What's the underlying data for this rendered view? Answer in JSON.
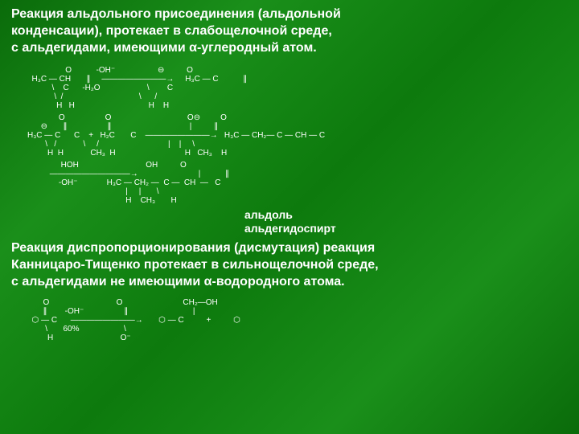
{
  "heading1_line1": "  Реакция альдольного присоединения (альдольной",
  "heading1_line2": " конденсации),  протекает в слабощелочной среде,",
  "heading1_line3": " с альдегидами, имеющими α-углеродный атом.",
  "scheme1": "                 O           -OH⁻                   ⊖          O\n  H₃C — CH       ∥     ————————→     H₃C — C           ∥\n           \\    C      -H₂O                     \\        C\n            \\  /                                  \\      /\n             H   H                                 H    H",
  "scheme2": "              O                  O                                  O⊖         O\n      ⊖       ∥                  ∥                                   |          ∥\nH₃C — C      C    +   H₂C       C    ————————→   H₃C — CH₂— C — CH — C\n        \\   /            \\     /                               |    |     \\\n         H  H            CH₃  H                               H   CH₃    H",
  "scheme3": "               HOH                              OH          O\n          ——————————→                           |           ∥\n              -OH⁻             H₃C — CH₂ —  C —  CH  —   C\n                                            |     |       \\\n                                            H    CH₃       H",
  "sublabel1": "альдоль",
  "sublabel2": "альдегидоспирт",
  "heading2_line1": "  Реакция диспропорционирования (дисмутация) реакция",
  "heading2_line2": "Канницаро-Тищенко протекает в сильнощелочной среде,",
  "heading2_line3": "с альдегидами не имеющими α-водородного атома.",
  "scheme4": "       O                              O                           CH₂—OH\n       ∥        -OH⁻                  ∥                             |\n  ⬡ — C      ————————→       ⬡ — C          +          ⬡\n        \\       60%                    \\\n         H                              O⁻",
  "colors": {
    "background_gradient": [
      "#0a6b0a",
      "#1a8f1a",
      "#0d7a0d"
    ],
    "text": "#ffffff"
  },
  "typography": {
    "title_fontsize": 16,
    "title_weight": "bold",
    "chem_fontsize": 10,
    "sublabel_fontsize": 14
  }
}
